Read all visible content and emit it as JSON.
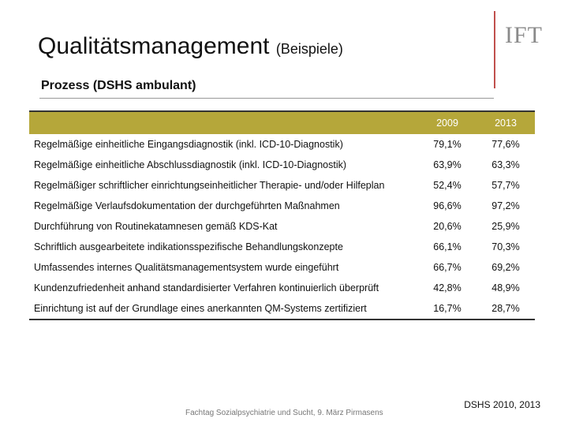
{
  "header": {
    "title": "Qualitätsmanagement",
    "title_suffix": "(Beispiele)",
    "logo": "IFT",
    "subtitle": "Prozess (DSHS ambulant)"
  },
  "table": {
    "columns": [
      "2009",
      "2013"
    ],
    "rows": [
      [
        "Regelmäßige einheitliche Eingangsdiagnostik (inkl. ICD-10-Diagnostik)",
        "79,1%",
        "77,6%"
      ],
      [
        "Regelmäßige einheitliche Abschlussdiagnostik (inkl. ICD-10-Diagnostik)",
        "63,9%",
        "63,3%"
      ],
      [
        "Regelmäßiger schriftlicher einrichtungseinheitlicher Therapie- und/oder Hilfeplan",
        "52,4%",
        "57,7%"
      ],
      [
        "Regelmäßige Verlaufsdokumentation der durchgeführten Maßnahmen",
        "96,6%",
        "97,2%"
      ],
      [
        "Durchführung von Routinekatamnesen gemäß KDS-Kat",
        "20,6%",
        "25,9%"
      ],
      [
        "Schriftlich ausgearbeitete indikationsspezifische Behandlungskonzepte",
        "66,1%",
        "70,3%"
      ],
      [
        "Umfassendes internes Qualitätsmanagementsystem wurde eingeführt",
        "66,7%",
        "69,2%"
      ],
      [
        "Kundenzufriedenheit anhand standardisierter Verfahren kontinuierlich überprüft",
        "42,8%",
        "48,9%"
      ],
      [
        "Einrichtung ist auf der Grundlage eines anerkannten QM-Systems zertifiziert",
        "16,7%",
        "28,7%"
      ]
    ]
  },
  "footer": {
    "event": "Fachtag Sozialpsychiatrie und Sucht, 9. März Pirmasens",
    "source": "DSHS 2010, 2013"
  }
}
